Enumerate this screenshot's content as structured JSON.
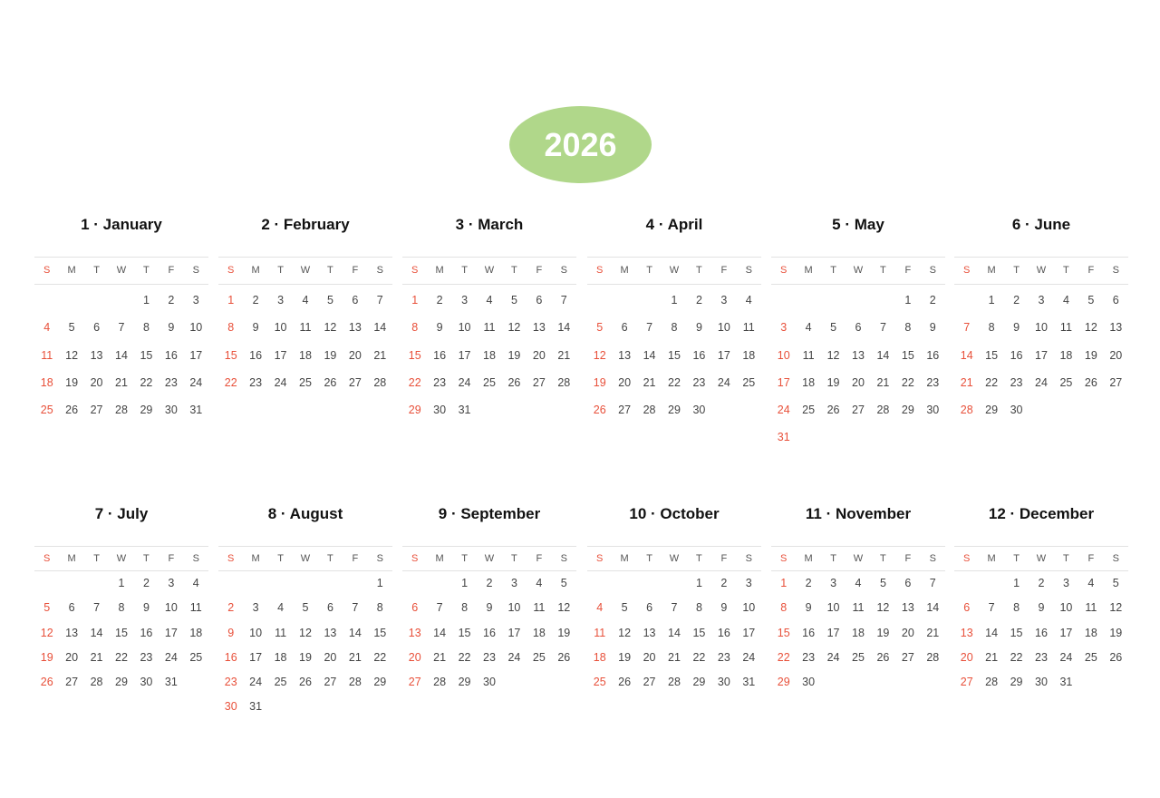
{
  "colors": {
    "accent": "#b0d78a",
    "sunday": "#e8503a"
  },
  "year": "2026",
  "weekdays": [
    "S",
    "M",
    "T",
    "W",
    "T",
    "F",
    "S"
  ],
  "months": [
    {
      "title": "1 · January",
      "first_weekday": 4,
      "days": 31
    },
    {
      "title": "2 · February",
      "first_weekday": 0,
      "days": 28
    },
    {
      "title": "3 · March",
      "first_weekday": 0,
      "days": 31
    },
    {
      "title": "4 · April",
      "first_weekday": 3,
      "days": 30
    },
    {
      "title": "5 · May",
      "first_weekday": 5,
      "days": 31
    },
    {
      "title": "6 · June",
      "first_weekday": 1,
      "days": 30
    },
    {
      "title": "7 · July",
      "first_weekday": 3,
      "days": 31
    },
    {
      "title": "8 · August",
      "first_weekday": 6,
      "days": 31
    },
    {
      "title": "9 · September",
      "first_weekday": 2,
      "days": 30
    },
    {
      "title": "10 · October",
      "first_weekday": 4,
      "days": 31
    },
    {
      "title": "11 · November",
      "first_weekday": 0,
      "days": 30
    },
    {
      "title": "12 · December",
      "first_weekday": 2,
      "days": 31
    }
  ]
}
